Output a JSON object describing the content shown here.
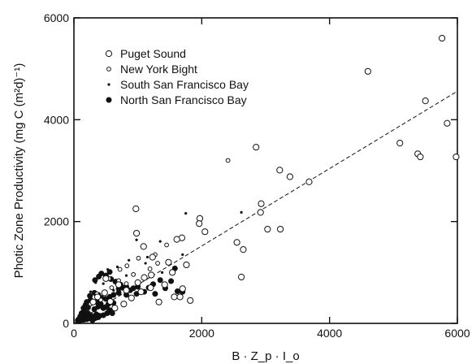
{
  "chart_data": {
    "type": "scatter",
    "title": "",
    "xlabel": "B · Z_p · I_o",
    "ylabel": "Photic Zone Productivity (mg C (m²d)⁻¹)",
    "xlim": [
      0,
      6000
    ],
    "ylim": [
      0,
      6000
    ],
    "xticks": [
      "0",
      "2000",
      "4000",
      "6000"
    ],
    "yticks": [
      "0",
      "2000",
      "4000",
      "6000"
    ],
    "grid": false,
    "legend_position": "top-left",
    "regression_line": {
      "style": "dashed",
      "x": [
        0,
        6000
      ],
      "y": [
        0,
        4560
      ]
    },
    "series": [
      {
        "name": "Puget Sound",
        "marker": "large-open-circle",
        "points": [
          [
            5760,
            5600
          ],
          [
            4600,
            4950
          ],
          [
            5500,
            4370
          ],
          [
            5840,
            3930
          ],
          [
            5980,
            3270
          ],
          [
            5100,
            3540
          ],
          [
            5380,
            3330
          ],
          [
            5420,
            3270
          ],
          [
            2850,
            3460
          ],
          [
            3220,
            3010
          ],
          [
            3380,
            2880
          ],
          [
            3680,
            2780
          ],
          [
            2930,
            2350
          ],
          [
            2920,
            2180
          ],
          [
            3030,
            1850
          ],
          [
            3230,
            1850
          ],
          [
            2550,
            1590
          ],
          [
            2650,
            1450
          ],
          [
            2620,
            910
          ],
          [
            970,
            2250
          ],
          [
            1970,
            2060
          ],
          [
            1960,
            1960
          ],
          [
            2050,
            1800
          ],
          [
            1690,
            1680
          ],
          [
            1610,
            1650
          ],
          [
            980,
            1770
          ],
          [
            1090,
            1510
          ],
          [
            1230,
            1300
          ],
          [
            1480,
            1200
          ],
          [
            1760,
            1150
          ],
          [
            1540,
            1000
          ],
          [
            1210,
            950
          ],
          [
            1100,
            900
          ],
          [
            1000,
            800
          ],
          [
            1420,
            760
          ],
          [
            1700,
            680
          ],
          [
            1570,
            520
          ],
          [
            1660,
            520
          ],
          [
            1820,
            450
          ],
          [
            1330,
            420
          ],
          [
            820,
            650
          ],
          [
            700,
            760
          ],
          [
            500,
            880
          ],
          [
            480,
            600
          ],
          [
            370,
            520
          ],
          [
            570,
            430
          ],
          [
            300,
            420
          ],
          [
            900,
            500
          ],
          [
            1050,
            620
          ],
          [
            640,
            300
          ],
          [
            780,
            380
          ],
          [
            1200,
            700
          ]
        ]
      },
      {
        "name": "New York Bight",
        "marker": "small-open-circle",
        "points": [
          [
            2410,
            3200
          ],
          [
            1450,
            1540
          ],
          [
            1270,
            1350
          ],
          [
            1010,
            1280
          ],
          [
            830,
            1130
          ],
          [
            930,
            960
          ],
          [
            720,
            1060
          ],
          [
            550,
            880
          ],
          [
            590,
            700
          ],
          [
            360,
            580
          ],
          [
            420,
            460
          ],
          [
            1310,
            1180
          ],
          [
            1190,
            1070
          ],
          [
            700,
            840
          ],
          [
            820,
            780
          ],
          [
            260,
            380
          ]
        ]
      },
      {
        "name": "South San Francisco Bay",
        "marker": "small-dot",
        "points": [
          [
            1750,
            2160
          ],
          [
            2620,
            2180
          ],
          [
            1350,
            1610
          ],
          [
            980,
            1640
          ],
          [
            1150,
            1300
          ],
          [
            1700,
            1350
          ],
          [
            1380,
            1000
          ],
          [
            1120,
            1180
          ],
          [
            680,
            1110
          ],
          [
            530,
            1060
          ],
          [
            860,
            1240
          ],
          [
            460,
            780
          ],
          [
            620,
            650
          ],
          [
            340,
            800
          ],
          [
            260,
            620
          ],
          [
            820,
            940
          ]
        ]
      },
      {
        "name": "North San Francisco Bay",
        "marker": "filled-circle",
        "points": [
          [
            430,
            980
          ],
          [
            560,
            1010
          ],
          [
            500,
            940
          ],
          [
            390,
            920
          ],
          [
            330,
            850
          ],
          [
            580,
            870
          ],
          [
            650,
            820
          ],
          [
            730,
            760
          ],
          [
            820,
            720
          ],
          [
            930,
            690
          ],
          [
            1000,
            720
          ],
          [
            1170,
            700
          ],
          [
            1240,
            770
          ],
          [
            1520,
            830
          ],
          [
            1580,
            1080
          ],
          [
            1700,
            620
          ],
          [
            1620,
            630
          ],
          [
            1430,
            690
          ],
          [
            1100,
            620
          ],
          [
            980,
            580
          ],
          [
            820,
            560
          ],
          [
            700,
            600
          ],
          [
            620,
            560
          ],
          [
            560,
            520
          ],
          [
            500,
            480
          ],
          [
            430,
            500
          ],
          [
            380,
            560
          ],
          [
            320,
            600
          ],
          [
            250,
            540
          ],
          [
            260,
            460
          ],
          [
            200,
            420
          ],
          [
            180,
            360
          ],
          [
            150,
            300
          ],
          [
            220,
            310
          ],
          [
            320,
            280
          ],
          [
            380,
            330
          ],
          [
            420,
            380
          ],
          [
            460,
            300
          ],
          [
            510,
            320
          ],
          [
            560,
            260
          ],
          [
            600,
            200
          ],
          [
            520,
            200
          ],
          [
            460,
            160
          ],
          [
            400,
            150
          ],
          [
            350,
            180
          ],
          [
            300,
            130
          ],
          [
            260,
            160
          ],
          [
            220,
            200
          ],
          [
            180,
            160
          ],
          [
            140,
            120
          ],
          [
            120,
            200
          ],
          [
            100,
            140
          ],
          [
            80,
            90
          ],
          [
            60,
            60
          ],
          [
            100,
            60
          ],
          [
            150,
            70
          ],
          [
            200,
            80
          ],
          [
            240,
            100
          ],
          [
            290,
            60
          ],
          [
            330,
            100
          ],
          [
            380,
            120
          ],
          [
            700,
            680
          ],
          [
            760,
            700
          ],
          [
            880,
            650
          ],
          [
            1270,
            580
          ],
          [
            1350,
            850
          ],
          [
            160,
            260
          ],
          [
            360,
            420
          ],
          [
            620,
            400
          ],
          [
            540,
            380
          ]
        ]
      }
    ]
  }
}
